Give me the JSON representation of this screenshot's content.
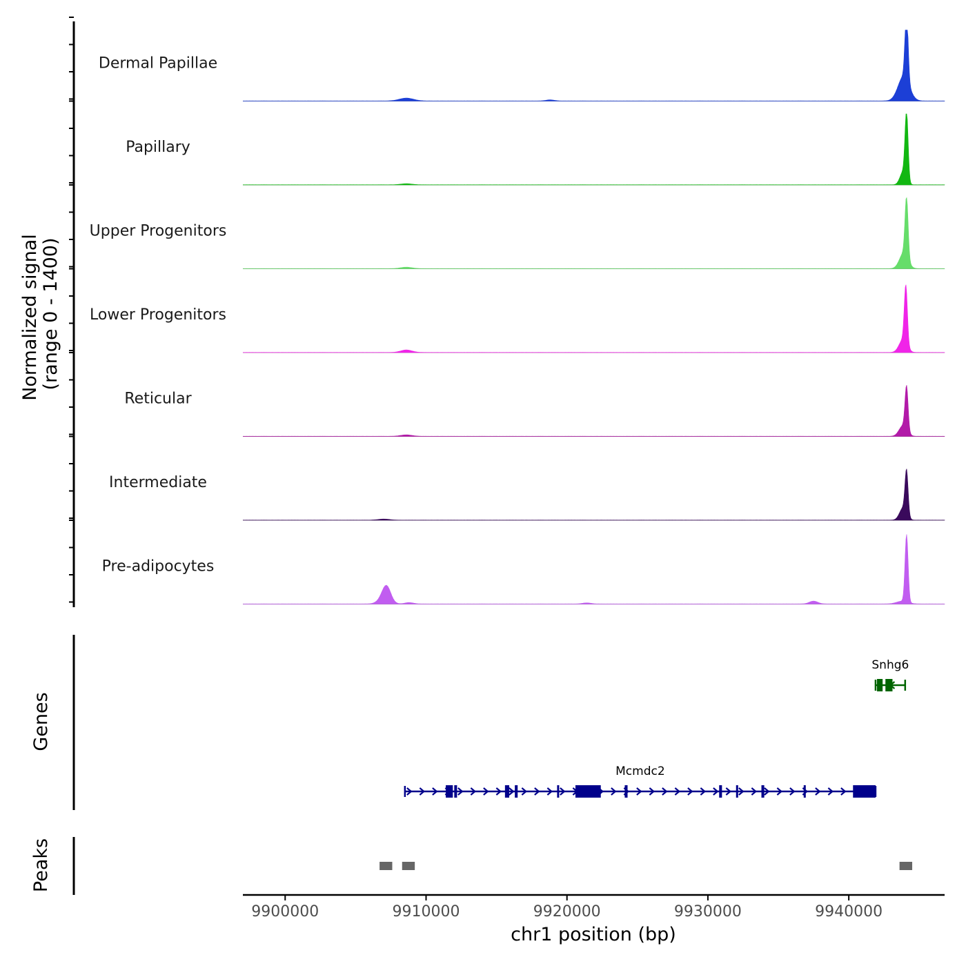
{
  "chart_data": {
    "type": "area",
    "chromosome": "chr1",
    "region": [
      9897000,
      9946800
    ],
    "signal_axis": {
      "title_line1": "Normalized signal",
      "title_line2": "(range 0 - 1400)",
      "range": [
        0,
        1400
      ]
    },
    "x_axis": {
      "label": "chr1 position (bp)",
      "ticks": [
        9900000,
        9910000,
        9920000,
        9930000,
        9940000
      ],
      "tick_labels": [
        "9900000",
        "9910000",
        "9920000",
        "9930000",
        "9940000"
      ]
    },
    "tracks": [
      {
        "name": "Dermal Papillae",
        "color": "#1c3fd6",
        "peaks": [
          [
            9943900,
            0.35,
            400
          ],
          [
            9944100,
            1.0,
            110
          ],
          [
            9908600,
            0.04,
            500
          ],
          [
            9918800,
            0.015,
            300
          ]
        ]
      },
      {
        "name": "Papillary",
        "color": "#12b712",
        "peaks": [
          [
            9943850,
            0.18,
            220
          ],
          [
            9944100,
            0.97,
            110
          ],
          [
            9908600,
            0.015,
            400
          ]
        ]
      },
      {
        "name": "Upper Progenitors",
        "color": "#66dd6a",
        "peaks": [
          [
            9943900,
            0.22,
            300
          ],
          [
            9944100,
            0.85,
            110
          ],
          [
            9908600,
            0.02,
            400
          ]
        ]
      },
      {
        "name": "Lower Progenitors",
        "color": "#f024e8",
        "peaks": [
          [
            9943850,
            0.18,
            280
          ],
          [
            9944050,
            0.82,
            110
          ],
          [
            9908600,
            0.035,
            400
          ]
        ]
      },
      {
        "name": "Reticular",
        "color": "#b21aa8",
        "peaks": [
          [
            9943850,
            0.15,
            280
          ],
          [
            9944100,
            0.62,
            110
          ],
          [
            9908600,
            0.02,
            400
          ]
        ]
      },
      {
        "name": "Intermediate",
        "color": "#3a0a5c",
        "peaks": [
          [
            9943850,
            0.17,
            250
          ],
          [
            9944100,
            0.62,
            110
          ],
          [
            9907000,
            0.015,
            400
          ]
        ]
      },
      {
        "name": "Pre-adipocytes",
        "color": "#c15df0",
        "peaks": [
          [
            9944100,
            0.95,
            110
          ],
          [
            9907200,
            0.2,
            300
          ],
          [
            9907000,
            0.07,
            400
          ],
          [
            9943800,
            0.04,
            400
          ],
          [
            9937500,
            0.04,
            300
          ],
          [
            9908800,
            0.02,
            300
          ],
          [
            9921400,
            0.015,
            300
          ]
        ]
      }
    ],
    "genes_track": {
      "label": "Genes",
      "genes": [
        {
          "name": "Snhg6",
          "start": 9941900,
          "end": 9944000,
          "strand": "-",
          "color": "#006400",
          "exons": [
            [
              9942000,
              9942400
            ],
            [
              9942600,
              9943100
            ]
          ]
        },
        {
          "name": "Mcmdc2",
          "start": 9908500,
          "end": 9941900,
          "strand": "+",
          "color": "#00008b",
          "exons": [
            [
              9911400,
              9911900
            ],
            [
              9912000,
              9912200
            ],
            [
              9915600,
              9915900
            ],
            [
              9916300,
              9916500
            ],
            [
              9919300,
              9919400
            ],
            [
              9920600,
              9922400
            ],
            [
              9924100,
              9924300
            ],
            [
              9930800,
              9931000
            ],
            [
              9932000,
              9932100
            ],
            [
              9933800,
              9934000
            ],
            [
              9936800,
              9936900
            ],
            [
              9940300,
              9941900
            ]
          ]
        }
      ]
    },
    "peaks_track": {
      "label": "Peaks",
      "color": "#666666",
      "regions": [
        [
          9906700,
          9907600
        ],
        [
          9908300,
          9909200
        ],
        [
          9943600,
          9944500
        ]
      ]
    }
  }
}
